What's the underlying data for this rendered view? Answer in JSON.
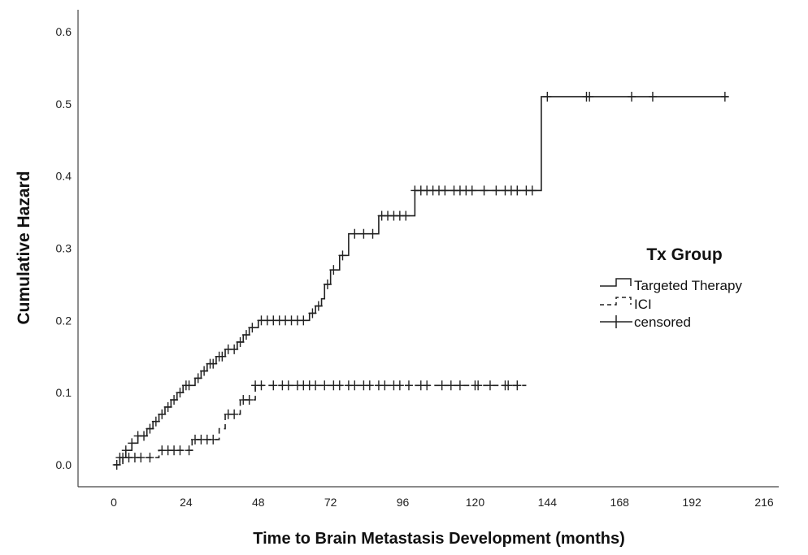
{
  "chart_data": {
    "type": "line",
    "title": "",
    "xlabel": "Time to Brain Metastasis Development (months)",
    "ylabel": "Cumulative Hazard",
    "xlim": [
      0,
      216
    ],
    "ylim": [
      0,
      0.6
    ],
    "x_ticks": [
      "0",
      "24",
      "48",
      "72",
      "96",
      "120",
      "144",
      "168",
      "192",
      "216"
    ],
    "y_ticks": [
      "0.0",
      "0.1",
      "0.2",
      "0.3",
      "0.4",
      "0.5",
      "0.6"
    ],
    "grid": false,
    "legend": {
      "title": "Tx Group",
      "position": "right",
      "entries": [
        "Targeted Therapy",
        "ICI",
        "censored"
      ]
    },
    "series": [
      {
        "name": "Targeted Therapy",
        "line_style": "solid",
        "color": "#222222",
        "steps": [
          [
            0,
            0.0
          ],
          [
            2,
            0.01
          ],
          [
            4,
            0.02
          ],
          [
            6,
            0.03
          ],
          [
            8,
            0.04
          ],
          [
            11,
            0.05
          ],
          [
            13,
            0.06
          ],
          [
            15,
            0.07
          ],
          [
            17,
            0.08
          ],
          [
            19,
            0.09
          ],
          [
            21,
            0.1
          ],
          [
            23,
            0.11
          ],
          [
            27,
            0.12
          ],
          [
            29,
            0.13
          ],
          [
            31,
            0.14
          ],
          [
            34,
            0.15
          ],
          [
            37,
            0.16
          ],
          [
            41,
            0.17
          ],
          [
            43,
            0.18
          ],
          [
            45,
            0.19
          ],
          [
            48,
            0.2
          ],
          [
            65,
            0.21
          ],
          [
            67,
            0.22
          ],
          [
            69,
            0.23
          ],
          [
            70,
            0.25
          ],
          [
            72,
            0.27
          ],
          [
            75,
            0.29
          ],
          [
            78,
            0.32
          ],
          [
            88,
            0.345
          ],
          [
            100,
            0.38
          ],
          [
            142,
            0.51
          ],
          [
            204,
            0.51
          ]
        ],
        "censored": [
          2,
          4,
          6,
          8,
          10,
          12,
          14,
          16,
          18,
          20,
          22,
          24,
          25,
          28,
          30,
          32,
          33,
          35,
          36,
          38,
          40,
          42,
          44,
          46,
          49,
          51,
          53,
          55,
          57,
          59,
          61,
          63,
          66,
          68,
          71,
          73,
          76,
          80,
          83,
          86,
          89,
          91,
          93,
          95,
          97,
          100,
          102,
          104,
          106,
          108,
          110,
          113,
          115,
          117,
          119,
          123,
          127,
          130,
          132,
          134,
          137,
          139,
          144,
          157,
          158,
          172,
          179,
          203
        ]
      },
      {
        "name": "ICI",
        "line_style": "dashed",
        "color": "#222222",
        "steps": [
          [
            0,
            0.0
          ],
          [
            3,
            0.01
          ],
          [
            15,
            0.02
          ],
          [
            26,
            0.035
          ],
          [
            35,
            0.05
          ],
          [
            37,
            0.07
          ],
          [
            42,
            0.09
          ],
          [
            47,
            0.11
          ],
          [
            137,
            0.11
          ]
        ],
        "censored": [
          1,
          3,
          5,
          7,
          9,
          12,
          16,
          18,
          20,
          22,
          25,
          27,
          29,
          31,
          33,
          38,
          40,
          43,
          45,
          47,
          49,
          53,
          56,
          58,
          61,
          63,
          65,
          67,
          70,
          73,
          75,
          78,
          80,
          83,
          85,
          88,
          90,
          93,
          95,
          98,
          102,
          104,
          109,
          112,
          115,
          120,
          121,
          125,
          130,
          131,
          134
        ]
      }
    ]
  }
}
